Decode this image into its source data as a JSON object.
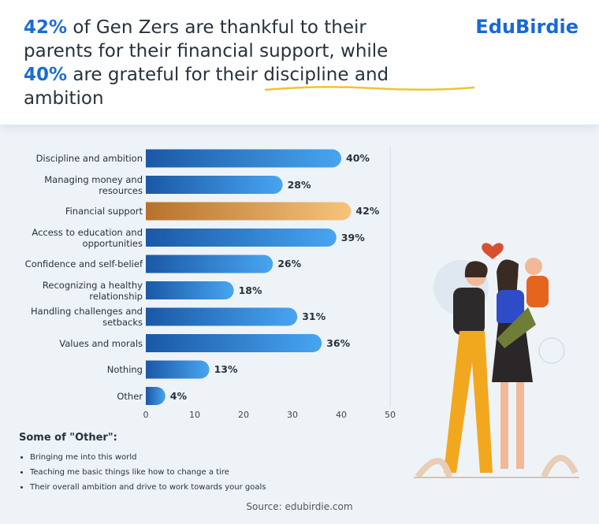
{
  "header": {
    "title": [
      "42%",
      "of Gen Zers are thankful to their parents for their financial support, while",
      "40%",
      "are grateful for their",
      "discipline and ambition"
    ],
    "logo": "EduBirdie"
  },
  "chart_data": {
    "type": "bar",
    "orientation": "horizontal",
    "categories": [
      "Discipline and ambition",
      "Managing money and resources",
      "Financial support",
      "Access to education and opportunities",
      "Confidence and self-belief",
      "Recognizing a healthy relationship",
      "Handling challenges and setbacks",
      "Values and morals",
      "Nothing",
      "Other"
    ],
    "values": [
      40,
      28,
      42,
      39,
      26,
      18,
      31,
      36,
      13,
      4
    ],
    "value_labels": [
      "40%",
      "28%",
      "42%",
      "39%",
      "26%",
      "18%",
      "31%",
      "36%",
      "13%",
      "4%"
    ],
    "colors": [
      [
        "#1a58a6",
        "#48a5f0"
      ],
      [
        "#1a58a6",
        "#48a5f0"
      ],
      [
        "#b6722c",
        "#f7c47c"
      ],
      [
        "#1a58a6",
        "#48a5f0"
      ],
      [
        "#1a58a6",
        "#48a5f0"
      ],
      [
        "#1a58a6",
        "#48a5f0"
      ],
      [
        "#1a58a6",
        "#48a5f0"
      ],
      [
        "#1a58a6",
        "#48a5f0"
      ],
      [
        "#1a58a6",
        "#48a5f0"
      ],
      [
        "#1a58a6",
        "#48a5f0"
      ]
    ],
    "xlim": [
      0,
      50
    ],
    "xticks": [
      0,
      10,
      20,
      30,
      40,
      50
    ]
  },
  "notes": {
    "heading": "Some of \"Other\":",
    "items": [
      "Bringing me into this world",
      "Teaching me basic things like how to change a tire",
      "Their overall ambition and drive to work towards your goals"
    ]
  },
  "source": "Source: edubirdie.com"
}
